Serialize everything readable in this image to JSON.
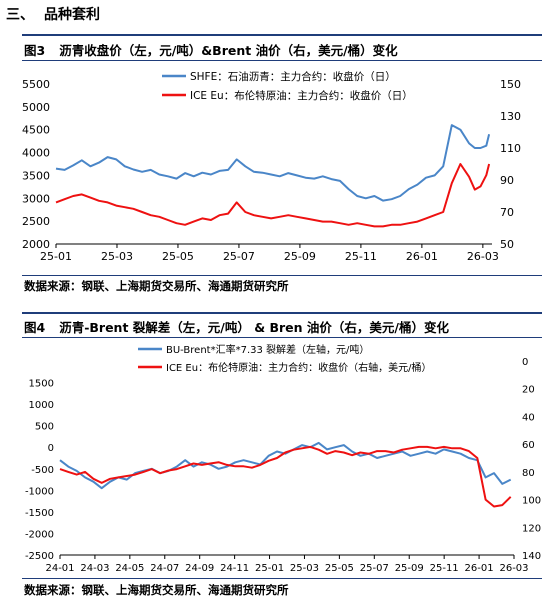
{
  "section": {
    "number": "三、",
    "title": "品种套利"
  },
  "charts": [
    {
      "fig_label": "图3",
      "fig_title": "沥青收盘价（左，元/吨）&Brent 油价（右，美元/桶）变化",
      "source": "数据来源：钢联、上海期货交易所、海通期货研究所"
    },
    {
      "fig_label": "图4",
      "fig_title": "沥青-Brent 裂解差（左，元/吨） & Bren 油价（右，美元/桶）变化",
      "source": "数据来源：钢联、上海期货交易所、海通期货研究所"
    }
  ],
  "colors": {
    "blue": "#4a86c8",
    "red": "#ee1111",
    "rule": "#1f3d7a"
  },
  "chart_data": [
    {
      "type": "line",
      "title": "沥青收盘价（左，元/吨）&Brent 油价（右，美元/桶）变化",
      "x_ticks": [
        "25-01",
        "25-03",
        "25-05",
        "25-07",
        "25-09",
        "25-11",
        "26-01",
        "26-03"
      ],
      "x_range": [
        0,
        15.2
      ],
      "y_left": {
        "min": 2000,
        "max": 5500,
        "ticks": [
          2000,
          2500,
          3000,
          3500,
          4000,
          4500,
          5000,
          5500
        ]
      },
      "y_right": {
        "min": 50,
        "max": 150,
        "ticks": [
          50,
          70,
          90,
          110,
          130,
          150
        ],
        "inverted": false
      },
      "grid": false,
      "legend_position": "top-center",
      "series": [
        {
          "name": "SHFE：石油沥青：主力合约：收盘价（日）",
          "axis": "left",
          "color": "#4a86c8",
          "x": [
            0,
            0.3,
            0.6,
            0.9,
            1.2,
            1.5,
            1.8,
            2.1,
            2.4,
            2.7,
            3.0,
            3.3,
            3.6,
            3.9,
            4.2,
            4.5,
            4.8,
            5.1,
            5.4,
            5.7,
            6.0,
            6.3,
            6.6,
            6.9,
            7.2,
            7.5,
            7.8,
            8.1,
            8.4,
            8.7,
            9.0,
            9.3,
            9.6,
            9.9,
            10.2,
            10.5,
            10.8,
            11.1,
            11.4,
            11.7,
            12.0,
            12.3,
            12.6,
            12.9,
            13.2,
            13.5,
            13.8,
            14.1,
            14.4,
            14.6,
            14.8,
            15.0,
            15.1
          ],
          "y": [
            3650,
            3620,
            3720,
            3830,
            3700,
            3780,
            3900,
            3850,
            3700,
            3630,
            3580,
            3620,
            3520,
            3480,
            3430,
            3550,
            3480,
            3560,
            3520,
            3600,
            3620,
            3850,
            3700,
            3580,
            3560,
            3520,
            3480,
            3550,
            3500,
            3450,
            3430,
            3480,
            3420,
            3380,
            3200,
            3050,
            3000,
            3050,
            2950,
            2980,
            3050,
            3200,
            3300,
            3450,
            3500,
            3700,
            4600,
            4500,
            4200,
            4100,
            4100,
            4150,
            4400
          ]
        },
        {
          "name": "ICE Eu：布伦特原油：主力合约：收盘价（日）",
          "axis": "right",
          "color": "#ee1111",
          "x": [
            0,
            0.3,
            0.6,
            0.9,
            1.2,
            1.5,
            1.8,
            2.1,
            2.4,
            2.7,
            3.0,
            3.3,
            3.6,
            3.9,
            4.2,
            4.5,
            4.8,
            5.1,
            5.4,
            5.7,
            6.0,
            6.3,
            6.6,
            6.9,
            7.2,
            7.5,
            7.8,
            8.1,
            8.4,
            8.7,
            9.0,
            9.3,
            9.6,
            9.9,
            10.2,
            10.5,
            10.8,
            11.1,
            11.4,
            11.7,
            12.0,
            12.3,
            12.6,
            12.9,
            13.2,
            13.5,
            13.8,
            14.1,
            14.4,
            14.6,
            14.8,
            15.0,
            15.1
          ],
          "y": [
            76,
            78,
            80,
            81,
            79,
            77,
            76,
            74,
            73,
            72,
            70,
            68,
            67,
            65,
            63,
            62,
            64,
            66,
            65,
            68,
            69,
            76,
            70,
            68,
            67,
            66,
            67,
            68,
            67,
            66,
            65,
            64,
            64,
            63,
            62,
            63,
            62,
            61,
            61,
            62,
            62,
            63,
            64,
            66,
            68,
            70,
            88,
            100,
            92,
            84,
            86,
            93,
            100
          ]
        }
      ]
    },
    {
      "type": "line",
      "title": "沥青-Brent 裂解差（左，元/吨） & Bren 油价（右，美元/桶）变化",
      "x_ticks": [
        "24-01",
        "24-03",
        "24-05",
        "24-07",
        "24-09",
        "24-11",
        "25-01",
        "25-03",
        "25-05",
        "25-07",
        "25-09",
        "25-11",
        "26-01",
        "26-03"
      ],
      "x_range": [
        0,
        27.2
      ],
      "y_left": {
        "min": -2500,
        "max": 2000,
        "ticks": [
          -2500,
          -2000,
          -1500,
          -1000,
          -500,
          0,
          500,
          1000,
          1500
        ]
      },
      "y_right": {
        "min": 0,
        "max": 140,
        "ticks": [
          0,
          20,
          40,
          60,
          80,
          100,
          120,
          140
        ],
        "inverted": true
      },
      "grid": false,
      "legend_position": "top-center",
      "series": [
        {
          "name": "BU-Brent*汇率*7.33 裂解差（左轴，元/吨）",
          "axis": "left",
          "color": "#4a86c8",
          "x": [
            0,
            0.5,
            1,
            1.5,
            2,
            2.5,
            3,
            3.5,
            4,
            4.5,
            5,
            5.5,
            6,
            6.5,
            7,
            7.5,
            8,
            8.5,
            9,
            9.5,
            10,
            10.5,
            11,
            11.5,
            12,
            12.5,
            13,
            13.5,
            14,
            14.5,
            15,
            15.5,
            16,
            16.5,
            17,
            17.5,
            18,
            18.5,
            19,
            19.5,
            20,
            20.5,
            21,
            21.5,
            22,
            22.5,
            23,
            23.5,
            24,
            24.5,
            25,
            25.5,
            26,
            26.5,
            27
          ],
          "y": [
            -300,
            -450,
            -550,
            -700,
            -800,
            -950,
            -800,
            -700,
            -750,
            -600,
            -550,
            -500,
            -600,
            -550,
            -450,
            -300,
            -450,
            -350,
            -400,
            -500,
            -450,
            -350,
            -300,
            -350,
            -400,
            -200,
            -100,
            -150,
            -50,
            50,
            0,
            100,
            -50,
            0,
            50,
            -100,
            -200,
            -150,
            -250,
            -200,
            -150,
            -100,
            -200,
            -150,
            -100,
            -150,
            -50,
            -100,
            -150,
            -250,
            -300,
            -700,
            -600,
            -850,
            -750
          ]
        },
        {
          "name": "ICE Eu：布伦特原油：主力合约：收盘价（右轴，美元/桶）",
          "axis": "right",
          "color": "#ee1111",
          "x": [
            0,
            0.5,
            1,
            1.5,
            2,
            2.5,
            3,
            3.5,
            4,
            4.5,
            5,
            5.5,
            6,
            6.5,
            7,
            7.5,
            8,
            8.5,
            9,
            9.5,
            10,
            10.5,
            11,
            11.5,
            12,
            12.5,
            13,
            13.5,
            14,
            14.5,
            15,
            15.5,
            16,
            16.5,
            17,
            17.5,
            18,
            18.5,
            19,
            19.5,
            20,
            20.5,
            21,
            21.5,
            22,
            22.5,
            23,
            23.5,
            24,
            24.5,
            25,
            25.5,
            26,
            26.5,
            27
          ],
          "y": [
            78,
            80,
            82,
            80,
            85,
            88,
            85,
            84,
            83,
            82,
            80,
            78,
            81,
            79,
            78,
            76,
            74,
            75,
            74,
            73,
            75,
            76,
            76,
            77,
            75,
            72,
            70,
            66,
            64,
            63,
            62,
            64,
            67,
            65,
            66,
            68,
            66,
            67,
            65,
            65,
            66,
            64,
            63,
            62,
            62,
            63,
            62,
            63,
            63,
            65,
            70,
            100,
            105,
            104,
            98
          ]
        }
      ]
    }
  ]
}
